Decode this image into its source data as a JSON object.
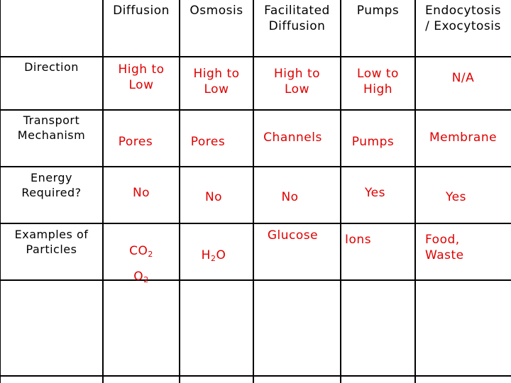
{
  "table": {
    "columns": [
      "Diffusion",
      "Osmosis",
      "Facilitated\nDiffusion",
      "Pumps",
      "Endocytosis\n/ Exocytosis"
    ],
    "rows": [
      {
        "label": "Direction",
        "cells": [
          "High to\nLow",
          "High to\nLow",
          "High to\nLow",
          "Low to\nHigh",
          "N/A"
        ]
      },
      {
        "label": "Transport\nMechanism",
        "cells": [
          "Pores",
          "Pores",
          "Channels",
          "Pumps",
          "Membrane"
        ]
      },
      {
        "label": "Energy\nRequired?",
        "cells": [
          "No",
          "No",
          "No",
          "Yes",
          "Yes"
        ]
      },
      {
        "label": "Examples of\nParticles",
        "cells": [
          "CO",
          "H",
          "Glucose",
          "Ions",
          "Food,\nWaste"
        ]
      },
      {
        "label": "",
        "cells": [
          "",
          "",
          "",
          "",
          ""
        ]
      }
    ],
    "examples_extra": {
      "co2_sub": "2",
      "o2_main": "O",
      "o2_sub": "2",
      "h2o_sub": "2",
      "h2o_tail": "O"
    }
  },
  "colors": {
    "value_text": "#e00000",
    "label_text": "#000000",
    "grid_lines": "#000000"
  }
}
